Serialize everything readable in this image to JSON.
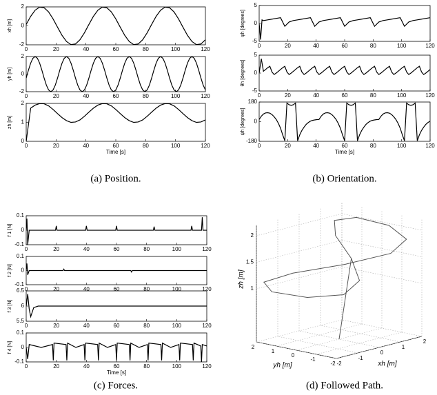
{
  "captions": [
    "(a) Position.",
    "(b) Orientation.",
    "(c) Forces.",
    "(d) Followed Path."
  ],
  "chart_data": [
    {
      "type": "line",
      "ylabel": "xh [m]",
      "color": "#000000",
      "xlim": [
        0,
        120
      ],
      "xticks": [
        0,
        20,
        40,
        60,
        80,
        100,
        120
      ],
      "ylim": [
        -2,
        2
      ],
      "yticks": [
        -2,
        0,
        2
      ],
      "x": [
        0,
        3,
        6,
        9,
        12,
        15,
        18,
        21,
        24,
        27,
        30,
        33,
        36,
        39,
        42,
        45,
        48,
        51,
        54,
        57,
        60,
        63,
        66,
        69,
        72,
        75,
        78,
        81,
        84,
        87,
        90,
        93,
        96,
        99,
        102,
        105,
        108,
        111,
        114,
        117,
        120
      ],
      "values": [
        0.15,
        1.0,
        1.65,
        1.98,
        1.91,
        1.47,
        0.73,
        -0.15,
        -1.0,
        -1.65,
        -1.98,
        -1.91,
        -1.47,
        -0.73,
        0.15,
        1.0,
        1.65,
        1.98,
        1.91,
        1.47,
        0.73,
        -0.15,
        -1.0,
        -1.65,
        -1.98,
        -1.91,
        -1.47,
        -0.73,
        0.15,
        1.0,
        1.65,
        1.98,
        1.91,
        1.47,
        0.73,
        -0.15,
        -1.0,
        -1.65,
        -1.98,
        -1.91,
        -1.47
      ]
    },
    {
      "type": "line",
      "ylabel": "yh [m]",
      "color": "#000000",
      "xlim": [
        0,
        120
      ],
      "xticks": [
        0,
        20,
        40,
        60,
        80,
        100,
        120
      ],
      "ylim": [
        -2,
        2
      ],
      "yticks": [
        -2,
        0,
        2
      ],
      "x": [
        0,
        1.5,
        3,
        4.5,
        6,
        7.5,
        9,
        10.5,
        12,
        13.5,
        15,
        16.5,
        18,
        19.5,
        21,
        22.5,
        24,
        25.5,
        27,
        28.5,
        30,
        31.5,
        33,
        34.5,
        36,
        37.5,
        39,
        40.5,
        42,
        43.5,
        45,
        46.5,
        48,
        49.5,
        51,
        52.5,
        54,
        55.5,
        57,
        58.5,
        60,
        61.5,
        63,
        64.5,
        66,
        67.5,
        69,
        70.5,
        72,
        73.5,
        75,
        76.5,
        78,
        79.5,
        81,
        82.5,
        84,
        85.5,
        87,
        88.5,
        90,
        91.5,
        93,
        94.5,
        96,
        97.5,
        99,
        100.5,
        102,
        103.5,
        105,
        106.5,
        108,
        109.5,
        111,
        112.5,
        114,
        115.5,
        117,
        118.5,
        120
      ],
      "values": [
        -0.45,
        0.45,
        1.25,
        1.8,
        2,
        1.8,
        1.25,
        0.45,
        -0.45,
        -1.25,
        -1.8,
        -2,
        -1.8,
        -1.25,
        -0.45,
        0.45,
        1.25,
        1.8,
        2,
        1.8,
        1.25,
        0.45,
        -0.45,
        -1.25,
        -1.8,
        -2,
        -1.8,
        -1.25,
        -0.45,
        0.45,
        1.25,
        1.8,
        2,
        1.8,
        1.25,
        0.45,
        -0.45,
        -1.25,
        -1.8,
        -2,
        -1.8,
        -1.25,
        -0.45,
        0.45,
        1.25,
        1.8,
        2,
        1.8,
        1.25,
        0.45,
        -0.45,
        -1.25,
        -1.8,
        -2,
        -1.8,
        -1.25,
        -0.45,
        0.45,
        1.25,
        1.8,
        2,
        1.8,
        1.25,
        0.45,
        -0.45,
        -1.25,
        -1.8,
        -2,
        -1.8,
        -1.25,
        -0.45,
        0.45,
        1.25,
        1.8,
        2,
        1.8,
        1.25,
        0.45,
        -0.45,
        -1.25,
        -1.8
      ]
    },
    {
      "type": "line",
      "ylabel": "zh [m]",
      "xlabel": "Time [s]",
      "color": "#000000",
      "xlim": [
        0,
        120
      ],
      "xticks": [
        0,
        20,
        40,
        60,
        80,
        100,
        120
      ],
      "ylim": [
        0,
        2
      ],
      "yticks": [
        0,
        1,
        2
      ],
      "x": [
        0,
        3,
        6,
        9,
        12,
        15,
        18,
        21,
        24,
        27,
        30,
        33,
        36,
        39,
        42,
        45,
        48,
        51,
        54,
        57,
        60,
        63,
        66,
        69,
        72,
        75,
        78,
        81,
        84,
        87,
        90,
        93,
        96,
        99,
        102,
        105,
        108,
        111,
        114,
        117,
        120
      ],
      "values": [
        0,
        1.75,
        1.91,
        1.99,
        1.98,
        1.87,
        1.68,
        1.46,
        1.25,
        1.09,
        1.0,
        1.02,
        1.13,
        1.32,
        1.54,
        1.75,
        1.91,
        1.99,
        1.98,
        1.87,
        1.68,
        1.46,
        1.25,
        1.09,
        1.0,
        1.02,
        1.13,
        1.32,
        1.54,
        1.75,
        1.91,
        1.99,
        1.98,
        1.87,
        1.68,
        1.46,
        1.25,
        1.09,
        1.0,
        1.02,
        1.13
      ]
    },
    {
      "type": "line",
      "ylabel": "φh [degrees]",
      "color": "#000000",
      "xlim": [
        0,
        120
      ],
      "xticks": [
        0,
        20,
        40,
        60,
        80,
        100,
        120
      ],
      "ylim": [
        -5,
        5
      ],
      "yticks": [
        -5,
        0,
        5
      ],
      "x": [
        0,
        1,
        2,
        3,
        6,
        9,
        12,
        15,
        18,
        21,
        24,
        27,
        30,
        33,
        36,
        39,
        42,
        45,
        48,
        51,
        54,
        57,
        60,
        63,
        66,
        69,
        72,
        75,
        78,
        81,
        84,
        87,
        90,
        93,
        96,
        99,
        102,
        105,
        108,
        111,
        114,
        117,
        120
      ],
      "values": [
        0,
        -4.5,
        1,
        0.8,
        1.0,
        1.2,
        1.4,
        1.6,
        -0.8,
        0.4,
        0.8,
        1.0,
        1.2,
        1.4,
        1.6,
        -0.8,
        0.4,
        0.8,
        1.0,
        1.2,
        1.4,
        1.6,
        -0.8,
        0.4,
        0.8,
        1.0,
        1.2,
        1.4,
        1.6,
        -0.8,
        0.4,
        0.8,
        1.0,
        1.2,
        1.4,
        1.6,
        -0.8,
        0.4,
        0.8,
        1.0,
        1.2,
        1.4,
        1.6
      ]
    },
    {
      "type": "line",
      "ylabel": "θh [degrees]",
      "color": "#000000",
      "xlim": [
        0,
        120
      ],
      "xticks": [
        0,
        20,
        40,
        60,
        80,
        100,
        120
      ],
      "ylim": [
        -5,
        5
      ],
      "yticks": [
        -5,
        0,
        5
      ],
      "x": [
        0,
        1.5,
        3,
        4.5,
        6,
        7.5,
        9,
        10.5,
        12,
        13.5,
        15,
        16.5,
        18,
        19.5,
        21,
        22.5,
        24,
        25.5,
        27,
        28.5,
        30,
        31.5,
        33,
        34.5,
        36,
        37.5,
        39,
        40.5,
        42,
        43.5,
        45,
        46.5,
        48,
        49.5,
        51,
        52.5,
        54,
        55.5,
        57,
        58.5,
        60,
        61.5,
        63,
        64.5,
        66,
        67.5,
        69,
        70.5,
        72,
        73.5,
        75,
        76.5,
        78,
        79.5,
        81,
        82.5,
        84,
        85.5,
        87,
        88.5,
        90,
        91.5,
        93,
        94.5,
        96,
        97.5,
        99,
        100.5,
        102,
        103.5,
        105,
        106.5,
        108,
        109.5,
        111,
        112.5,
        114,
        115.5,
        117,
        118.5,
        120
      ],
      "values": [
        0,
        4,
        0.5,
        1.0,
        1.5,
        1.9,
        0.3,
        -0.4,
        0.0,
        0.5,
        1.0,
        1.5,
        1.9,
        0.3,
        -0.4,
        0.0,
        0.5,
        1.0,
        1.5,
        1.9,
        0.3,
        -0.4,
        0.0,
        0.5,
        1.0,
        1.5,
        1.9,
        0.3,
        -0.4,
        0.0,
        0.5,
        1.0,
        1.5,
        1.9,
        0.3,
        -0.4,
        0.0,
        0.5,
        1.0,
        1.5,
        1.9,
        0.3,
        -0.4,
        0.0,
        0.5,
        1.0,
        1.5,
        1.9,
        0.3,
        -0.4,
        0.0,
        0.5,
        1.0,
        1.5,
        1.9,
        0.3,
        -0.4,
        0.0,
        0.5,
        1.0,
        1.5,
        1.9,
        0.3,
        -0.4,
        0.0,
        0.5,
        1.0,
        1.5,
        1.9,
        0.3,
        -0.4,
        0.0,
        0.5,
        1.0,
        1.5,
        1.9,
        0.3,
        -0.4,
        0.0,
        0.5,
        1.0
      ]
    },
    {
      "type": "line",
      "ylabel": "ψh [degrees]",
      "xlabel": "Time [s]",
      "color": "#000000",
      "xlim": [
        0,
        120
      ],
      "xticks": [
        0,
        20,
        40,
        60,
        80,
        100,
        120
      ],
      "ylim": [
        -180,
        180
      ],
      "yticks": [
        -180,
        0,
        180
      ],
      "x": [
        0,
        1.5,
        3,
        4.5,
        6,
        7.5,
        9,
        10.5,
        12,
        13.5,
        15,
        16.5,
        18,
        19.5,
        21,
        22.5,
        24,
        25.5,
        27,
        28.5,
        30,
        31.5,
        33,
        34.5,
        36,
        37.5,
        39,
        40.5,
        42,
        43.5,
        45,
        46.5,
        48,
        49.5,
        51,
        52.5,
        54,
        55.5,
        57,
        58.5,
        60,
        61.5,
        63,
        64.5,
        66,
        67.5,
        69,
        70.5,
        72,
        73.5,
        75,
        76.5,
        78,
        79.5,
        81,
        82.5,
        84,
        85.5,
        87,
        88.5,
        90,
        91.5,
        93,
        94.5,
        96,
        97.5,
        99,
        100.5,
        102,
        103.5,
        105,
        106.5,
        108,
        109.5,
        111,
        112.5,
        114,
        115.5,
        117,
        118.5,
        120
      ],
      "values": [
        20,
        50,
        70,
        80,
        82,
        78,
        65,
        45,
        20,
        -15,
        -60,
        -120,
        -175,
        170,
        155,
        150,
        155,
        170,
        -175,
        -120,
        -80,
        -50,
        -25,
        -8,
        5,
        12,
        16,
        19,
        20,
        50,
        70,
        80,
        82,
        78,
        65,
        45,
        20,
        -15,
        -60,
        -120,
        -175,
        170,
        155,
        150,
        155,
        170,
        -175,
        -120,
        -80,
        -50,
        -25,
        -8,
        5,
        12,
        16,
        19,
        20,
        50,
        70,
        80,
        82,
        78,
        65,
        45,
        20,
        -15,
        -60,
        -120,
        -175,
        170,
        155,
        150,
        155,
        170,
        -175,
        -120,
        -80,
        -50,
        -25,
        -8,
        5
      ]
    },
    {
      "type": "line",
      "ylabel": "f 1 [N]",
      "color": "#000000",
      "xlim": [
        0,
        120
      ],
      "xticks": [
        0,
        20,
        40,
        60,
        80,
        100,
        120
      ],
      "ylim": [
        -0.1,
        0.1
      ],
      "yticks": [
        -0.1,
        0,
        0.1
      ],
      "x": [
        0,
        0.5,
        1,
        2,
        5,
        19.5,
        20,
        20.5,
        39.5,
        40,
        40.5,
        59.5,
        60,
        60.5,
        84.5,
        85,
        85.5,
        109.5,
        110,
        110.5,
        116.5,
        117,
        117.5,
        120
      ],
      "values": [
        0,
        0.08,
        -0.1,
        0,
        0,
        0,
        0.03,
        0,
        0,
        0.03,
        0,
        0,
        0.03,
        0,
        0,
        0.025,
        0,
        0,
        0.03,
        0,
        0,
        0.09,
        0,
        0
      ]
    },
    {
      "type": "line",
      "ylabel": "f 2 [N]",
      "color": "#000000",
      "xlim": [
        0,
        120
      ],
      "xticks": [
        0,
        20,
        40,
        60,
        80,
        100,
        120
      ],
      "ylim": [
        -0.1,
        0.1
      ],
      "yticks": [
        -0.1,
        0,
        0.1
      ],
      "x": [
        0,
        0.5,
        1,
        2,
        24.5,
        25,
        25.5,
        69.5,
        70,
        70.5,
        120
      ],
      "values": [
        0,
        0.05,
        -0.03,
        0,
        0,
        0.01,
        0,
        0,
        -0.01,
        0,
        0
      ]
    },
    {
      "type": "line",
      "ylabel": "f 3 [N]",
      "color": "#000000",
      "xlim": [
        0,
        120
      ],
      "xticks": [
        0,
        20,
        40,
        60,
        80,
        100,
        120
      ],
      "ylim": [
        5.5,
        6.5
      ],
      "yticks": [
        5.5,
        6,
        6.5
      ],
      "x": [
        0,
        1,
        2,
        3,
        5,
        8,
        120
      ],
      "values": [
        6.0,
        6.4,
        5.9,
        5.65,
        5.95,
        6.0,
        6.0
      ]
    },
    {
      "type": "line",
      "ylabel": "f 4 [N]",
      "xlabel": "Time [s]",
      "color": "#000000",
      "xlim": [
        0,
        120
      ],
      "xticks": [
        0,
        20,
        40,
        60,
        80,
        100,
        120
      ],
      "ylim": [
        -0.1,
        0.1
      ],
      "yticks": [
        -0.1,
        0,
        0.1
      ],
      "x": [
        0,
        1,
        2,
        10,
        17.5,
        18,
        18.5,
        26.5,
        27,
        27.5,
        33,
        38.5,
        39,
        39.5,
        47.5,
        48,
        48.5,
        54,
        59.5,
        60,
        60.5,
        68.5,
        69,
        69.5,
        75,
        80.5,
        81,
        81.5,
        89.5,
        90,
        90.5,
        96,
        101.5,
        102,
        102.5,
        110.5,
        111,
        111.5,
        116,
        116.5,
        117,
        120
      ],
      "values": [
        0,
        -0.08,
        0.02,
        0.0,
        0.02,
        -0.09,
        0.03,
        0.02,
        -0.09,
        0.03,
        0.0,
        0.02,
        -0.09,
        0.03,
        0.02,
        -0.09,
        0.03,
        0.0,
        0.02,
        -0.09,
        0.03,
        0.02,
        -0.09,
        0.03,
        0.0,
        0.02,
        -0.09,
        0.03,
        0.02,
        -0.09,
        0.03,
        0.0,
        0.02,
        -0.09,
        0.03,
        0.02,
        -0.09,
        0.03,
        0.01,
        -0.1,
        0.02,
        0.01
      ]
    },
    {
      "type": "line3d",
      "xlabel": "xh [m]",
      "ylabel": "yh [m]",
      "zlabel": "zh [m]",
      "color": "#555555",
      "grid": true,
      "xlim": [
        -2,
        2
      ],
      "xticks": [
        -2,
        -1,
        0,
        1,
        2
      ],
      "ylim": [
        -2,
        2
      ],
      "yticks": [
        -2,
        -1,
        0,
        1,
        2
      ],
      "zlim": [
        0,
        2.2
      ],
      "zticks": [
        1,
        1.5,
        2
      ],
      "x": [
        0,
        0.15,
        1.0,
        1.65,
        1.98,
        1.91,
        1.47,
        0.73,
        -0.15,
        -1.0,
        -1.65,
        -1.98,
        -1.91,
        -1.47,
        -0.73,
        0.15
      ],
      "y": [
        0,
        -0.45,
        1.25,
        2.0,
        1.25,
        -0.45,
        -1.8,
        -1.8,
        -0.45,
        1.25,
        2.0,
        1.25,
        -0.45,
        -1.8,
        -1.8,
        -0.45
      ],
      "z": [
        0,
        1.54,
        1.75,
        1.91,
        1.99,
        1.98,
        1.87,
        1.68,
        1.46,
        1.25,
        1.09,
        1.0,
        1.02,
        1.13,
        1.32,
        1.54
      ]
    }
  ]
}
